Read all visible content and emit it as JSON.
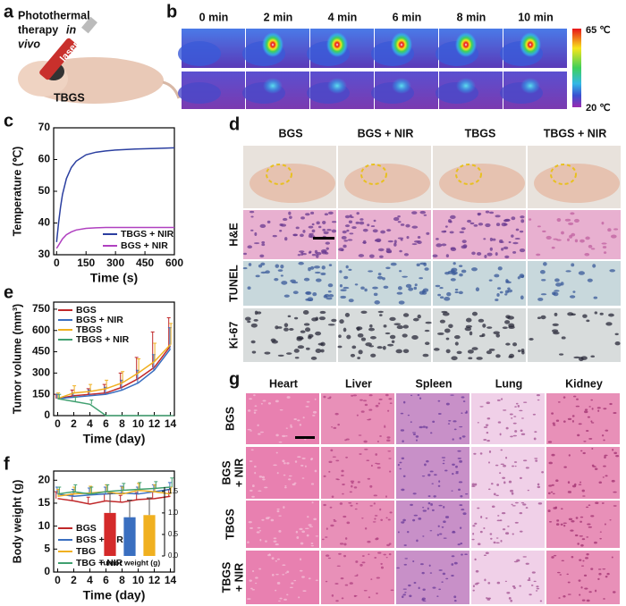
{
  "figure": {
    "panel_labels": [
      "a",
      "b",
      "c",
      "d",
      "e",
      "f",
      "g"
    ],
    "a": {
      "text": [
        "Photothermal",
        "therapy",
        "in",
        "vivo"
      ],
      "laser": "laser",
      "sample": "TBGS"
    },
    "b": {
      "times": [
        "0 min",
        "2 min",
        "4 min",
        "6 min",
        "8 min",
        "10 min"
      ],
      "scale_max": "65 ℃",
      "scale_min": "20 ℃"
    },
    "d": {
      "columns": [
        "BGS",
        "BGS + NIR",
        "TBGS",
        "TBGS + NIR"
      ],
      "rows": [
        "H&E",
        "TUNEL",
        "Ki-67"
      ]
    },
    "g": {
      "columns": [
        "Heart",
        "Liver",
        "Spleen",
        "Lung",
        "Kidney"
      ],
      "rows": [
        [
          "BGS"
        ],
        [
          "BGS",
          "+ NIR"
        ],
        [
          "TBGS"
        ],
        [
          "TBGS",
          "+ NIR"
        ]
      ]
    }
  },
  "chart_data": [
    {
      "type": "line",
      "xlabel": "Time (s)",
      "ylabel": "Temperature (℃)",
      "x": [
        0,
        10,
        20,
        30,
        50,
        75,
        100,
        150,
        200,
        250,
        300,
        400,
        500,
        600
      ],
      "series": [
        {
          "name": "TBGS + NIR",
          "color": "#2b3fa0",
          "values": [
            34,
            40,
            45,
            49,
            54,
            57.5,
            59.5,
            61.5,
            62.3,
            62.7,
            63,
            63.3,
            63.5,
            63.7
          ]
        },
        {
          "name": "BGS + NIR",
          "color": "#b040c0",
          "values": [
            32,
            33,
            34,
            35,
            36.3,
            37.2,
            37.8,
            38.3,
            38.5,
            38.6,
            38.6,
            38.6,
            38.6,
            38.6
          ]
        }
      ],
      "xlim": [
        -15,
        600
      ],
      "xticks": [
        0,
        150,
        300,
        450,
        600
      ],
      "ylim": [
        30,
        70
      ],
      "yticks": [
        30,
        40,
        50,
        60,
        70
      ],
      "legend": "lower right"
    },
    {
      "type": "line",
      "xlabel": "Time (day)",
      "ylabel": "Tumor volume (mm³)",
      "x": [
        0,
        2,
        4,
        6,
        8,
        10,
        12,
        14
      ],
      "series": [
        {
          "name": "BGS",
          "color": "#c0282a",
          "values": [
            120,
            140,
            150,
            160,
            200,
            260,
            340,
            490
          ],
          "errors": [
            30,
            40,
            40,
            60,
            100,
            150,
            250,
            200
          ]
        },
        {
          "name": "BGS + NIR",
          "color": "#3a6fc0",
          "values": [
            120,
            130,
            140,
            150,
            180,
            230,
            320,
            470
          ],
          "errors": [
            30,
            30,
            40,
            50,
            70,
            90,
            110,
            150
          ]
        },
        {
          "name": "TBGS",
          "color": "#f0b020",
          "values": [
            120,
            160,
            170,
            190,
            230,
            300,
            380,
            500
          ],
          "errors": [
            40,
            50,
            50,
            60,
            80,
            100,
            130,
            150
          ]
        },
        {
          "name": "TBGS + NIR",
          "color": "#40a070",
          "values": [
            120,
            100,
            80,
            0,
            0,
            0,
            0,
            0
          ],
          "errors": [
            30,
            30,
            30,
            0,
            0,
            0,
            0,
            0
          ]
        }
      ],
      "xlim": [
        -0.5,
        14.5
      ],
      "xticks": [
        0,
        2,
        4,
        6,
        8,
        10,
        12,
        14
      ],
      "ylim": [
        0,
        800
      ],
      "yticks": [
        0,
        150,
        300,
        450,
        600,
        750
      ],
      "legend": "upper left"
    },
    {
      "type": "line",
      "xlabel": "Time (day)",
      "ylabel": "Body weight (g)",
      "x": [
        0,
        2,
        4,
        6,
        8,
        10,
        12,
        14
      ],
      "series": [
        {
          "name": "BGS",
          "color": "#c0282a",
          "values": [
            16,
            15.5,
            14.8,
            15.5,
            15.2,
            15.8,
            16,
            16.5
          ],
          "errors": [
            1.5,
            1.5,
            1.5,
            1.5,
            1.5,
            1.5,
            1.5,
            1.5
          ]
        },
        {
          "name": "BGS + NIR",
          "color": "#3a6fc0",
          "values": [
            17,
            16.5,
            16.8,
            17,
            17.2,
            17,
            17.5,
            18
          ],
          "errors": [
            1.5,
            1.5,
            1.5,
            1.5,
            1.5,
            1.5,
            1.5,
            1.5
          ]
        },
        {
          "name": "TBG",
          "color": "#f0b020",
          "values": [
            16.5,
            17,
            17.2,
            17.5,
            17,
            17.8,
            17.5,
            17
          ],
          "errors": [
            1.5,
            1.5,
            1.5,
            1.5,
            1.5,
            1.5,
            1.5,
            1.5
          ]
        },
        {
          "name": "TBG + NIR",
          "color": "#40a070",
          "values": [
            17,
            17.5,
            17,
            17.5,
            17.8,
            18,
            18.2,
            18.5
          ],
          "errors": [
            1.5,
            1.5,
            1.5,
            1.5,
            1.5,
            1.5,
            1.5,
            2
          ]
        }
      ],
      "xlim": [
        -0.5,
        14.5
      ],
      "xticks": [
        0,
        2,
        4,
        6,
        8,
        10,
        12,
        14
      ],
      "ylim": [
        0,
        22
      ],
      "yticks": [
        0,
        5,
        10,
        15,
        20
      ],
      "legend": "lower left"
    },
    {
      "type": "bar",
      "xlabel": "Tumor weight (g)",
      "categories": [
        null,
        null,
        null
      ],
      "values": [
        1.0,
        0.9,
        0.95
      ],
      "errors": [
        0.45,
        0.4,
        0.4
      ],
      "colors": [
        "#d42a2a",
        "#3a6fc0",
        "#f0b020"
      ],
      "ylim": [
        0,
        1.6
      ],
      "yticks": [
        {
          "value": 0,
          "label": "0.0"
        },
        0.5,
        {
          "value": 1,
          "label": "1.0"
        },
        1.5
      ],
      "y_axis_side": "right"
    }
  ]
}
